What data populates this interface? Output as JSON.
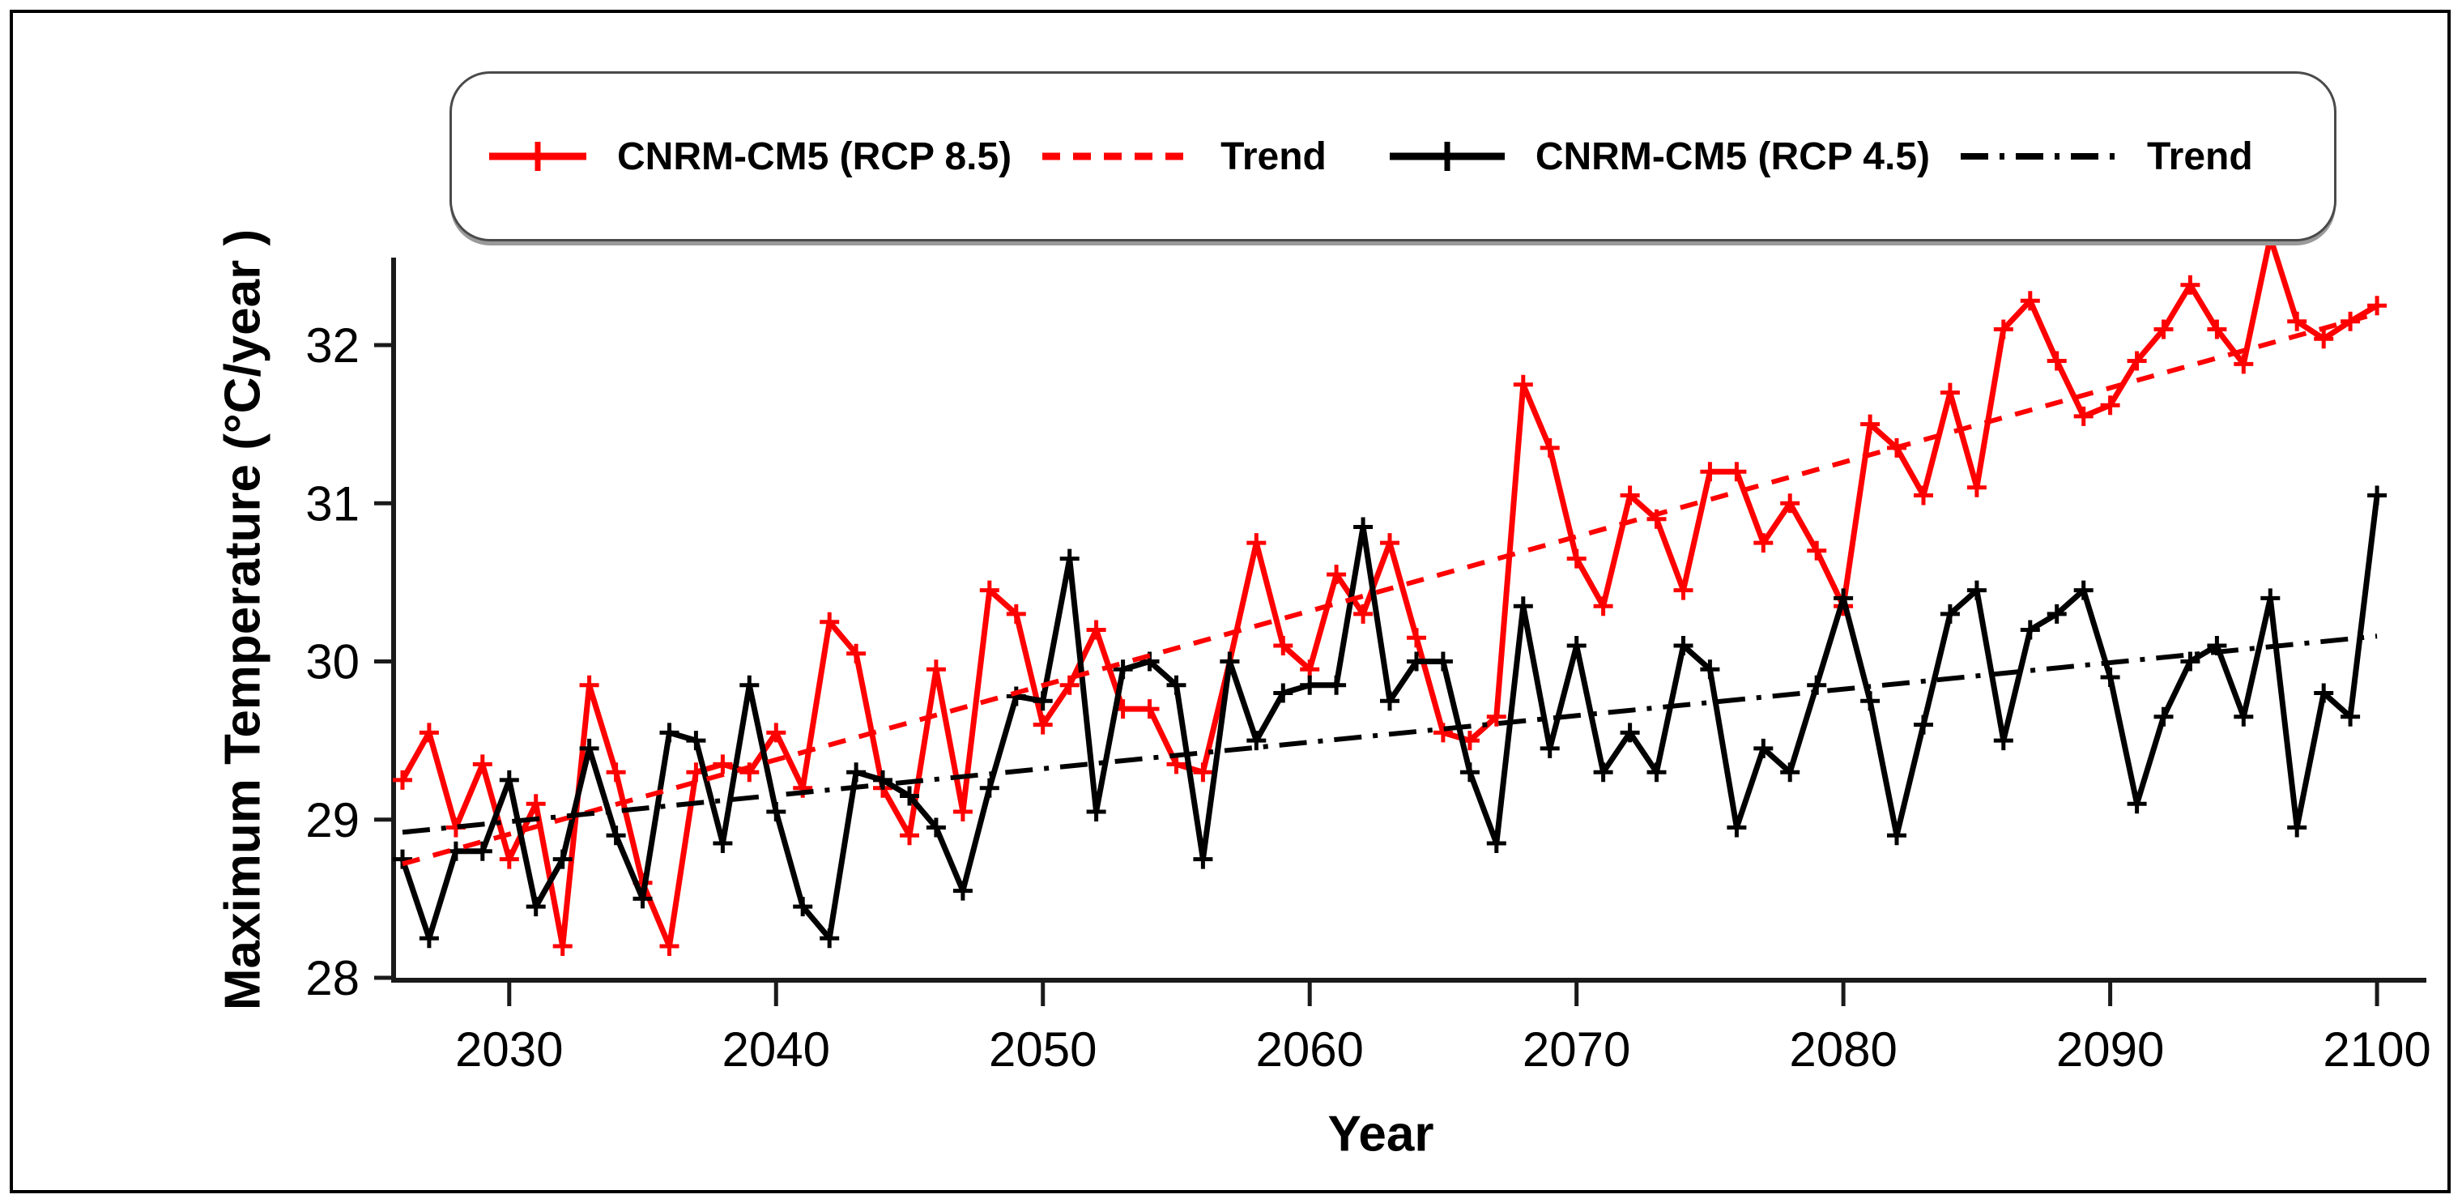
{
  "figure": {
    "background": "#ffffff",
    "border_color": "#000000"
  },
  "legend": {
    "items": [
      {
        "label": "CNRM-CM5 (RCP 8.5)",
        "sample": "solid-plus",
        "color": "#ff0000"
      },
      {
        "label": "Trend",
        "sample": "dashed",
        "color": "#ff0000"
      },
      {
        "label": "CNRM-CM5 (RCP 4.5)",
        "sample": "solid-plus",
        "color": "#000000"
      },
      {
        "label": "Trend",
        "sample": "dash-dot",
        "color": "#000000"
      }
    ]
  },
  "chart_data": {
    "type": "line",
    "title": "",
    "xlabel": "Year",
    "ylabel": "Maximum Temperature (°C/year )",
    "x_ticks": [
      2030,
      2040,
      2050,
      2060,
      2070,
      2080,
      2090,
      2100
    ],
    "y_ticks": [
      28,
      29,
      30,
      31,
      32
    ],
    "xlim": [
      2026,
      2101.8
    ],
    "ylim": [
      27.78,
      32.65
    ],
    "grid": false,
    "legend_position": "top",
    "marker": "plus",
    "x_start_year": 2026,
    "x": [
      2026,
      2027,
      2028,
      2029,
      2030,
      2031,
      2032,
      2033,
      2034,
      2035,
      2036,
      2037,
      2038,
      2039,
      2040,
      2041,
      2042,
      2043,
      2044,
      2045,
      2046,
      2047,
      2048,
      2049,
      2050,
      2051,
      2052,
      2053,
      2054,
      2055,
      2056,
      2057,
      2058,
      2059,
      2060,
      2061,
      2062,
      2063,
      2064,
      2065,
      2066,
      2067,
      2068,
      2069,
      2070,
      2071,
      2072,
      2073,
      2074,
      2075,
      2076,
      2077,
      2078,
      2079,
      2080,
      2081,
      2082,
      2083,
      2084,
      2085,
      2086,
      2087,
      2088,
      2089,
      2090,
      2091,
      2092,
      2093,
      2094,
      2095,
      2096,
      2097,
      2098,
      2099,
      2100
    ],
    "series": [
      {
        "name": "CNRM-CM5 (RCP 8.5)",
        "color": "#ff0000",
        "style": "solid",
        "marker": "plus",
        "values": [
          29.25,
          29.55,
          28.95,
          29.35,
          28.75,
          29.1,
          28.2,
          29.85,
          29.3,
          28.6,
          28.2,
          29.3,
          29.35,
          29.3,
          29.55,
          29.2,
          30.25,
          30.05,
          29.2,
          28.9,
          29.95,
          29.05,
          30.45,
          30.3,
          29.6,
          29.85,
          30.2,
          29.7,
          29.7,
          29.35,
          29.3,
          30.0,
          30.75,
          30.1,
          29.95,
          30.55,
          30.3,
          30.75,
          30.15,
          29.55,
          29.5,
          29.65,
          31.75,
          31.35,
          30.65,
          30.35,
          31.05,
          30.9,
          30.45,
          31.2,
          31.2,
          30.75,
          31.0,
          30.7,
          30.35,
          31.5,
          31.35,
          31.05,
          31.7,
          31.1,
          32.1,
          32.28,
          31.9,
          31.55,
          31.62,
          31.9,
          32.1,
          32.38,
          32.1,
          31.88,
          32.68,
          32.15,
          32.04,
          32.15,
          32.25
        ]
      },
      {
        "name": "Trend",
        "color": "#ff0000",
        "style": "dashed",
        "trend": {
          "start_year": 2026,
          "start_value": 28.72,
          "end_year": 2100,
          "end_value": 32.2
        }
      },
      {
        "name": "CNRM-CM5 (RCP 4.5)",
        "color": "#000000",
        "style": "solid",
        "marker": "plus",
        "values": [
          28.75,
          28.25,
          28.8,
          28.8,
          29.25,
          28.45,
          28.75,
          29.45,
          28.9,
          28.5,
          29.55,
          29.5,
          28.85,
          29.85,
          29.05,
          28.45,
          28.25,
          29.3,
          29.25,
          29.15,
          28.95,
          28.55,
          29.2,
          29.78,
          29.75,
          30.65,
          29.05,
          29.95,
          30.0,
          29.85,
          28.75,
          30.0,
          29.5,
          29.8,
          29.85,
          29.85,
          30.85,
          29.75,
          30.0,
          30.0,
          29.3,
          28.85,
          30.35,
          29.45,
          30.1,
          29.3,
          29.55,
          29.3,
          30.1,
          29.95,
          28.95,
          29.45,
          29.3,
          29.85,
          30.4,
          29.75,
          28.9,
          29.6,
          30.3,
          30.45,
          29.5,
          30.2,
          30.3,
          30.45,
          29.9,
          29.1,
          29.65,
          30.0,
          30.1,
          29.65,
          30.4,
          28.95,
          29.8,
          29.65,
          31.05
        ]
      },
      {
        "name": "Trend",
        "color": "#000000",
        "style": "dash-dot",
        "trend": {
          "start_year": 2026,
          "start_value": 28.92,
          "end_year": 2100,
          "end_value": 30.16
        }
      }
    ]
  }
}
